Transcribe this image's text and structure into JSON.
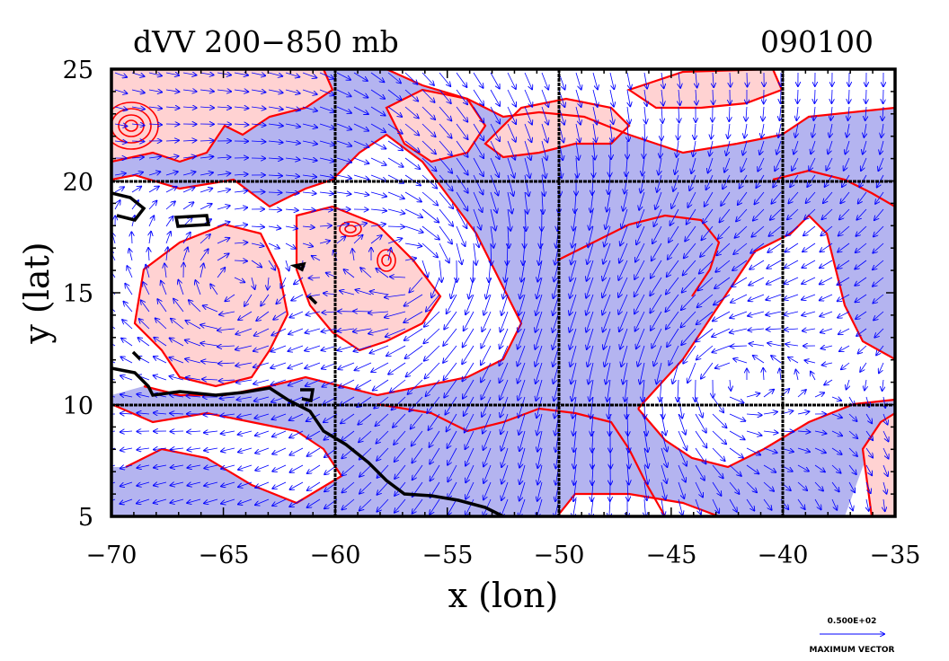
{
  "figure": {
    "title": "dVV 200−850 mb",
    "date_label": "090100",
    "xlabel": "x (lon)",
    "ylabel": "y (lat)",
    "x_ticks": [
      "−70",
      "−65",
      "−60",
      "−55",
      "−50",
      "−45",
      "−40",
      "−35"
    ],
    "y_ticks": [
      "25",
      "20",
      "15",
      "10",
      "5"
    ],
    "legend": {
      "magnitude": "0.500E+02",
      "caption": "MAXIMUM VECTOR"
    }
  },
  "chart_data": {
    "type": "map",
    "xlim": [
      -70,
      -35
    ],
    "ylim": [
      5,
      25
    ],
    "grid": true,
    "grid_lon": [
      -60,
      -50,
      -40
    ],
    "grid_lat": [
      10,
      20
    ],
    "colors": {
      "positive_fill": "#ffd2d2",
      "negative_fill": "#b4b4f0",
      "contour": "#ff0000",
      "vector": "#0000ff",
      "coast": "#000000"
    }
  }
}
